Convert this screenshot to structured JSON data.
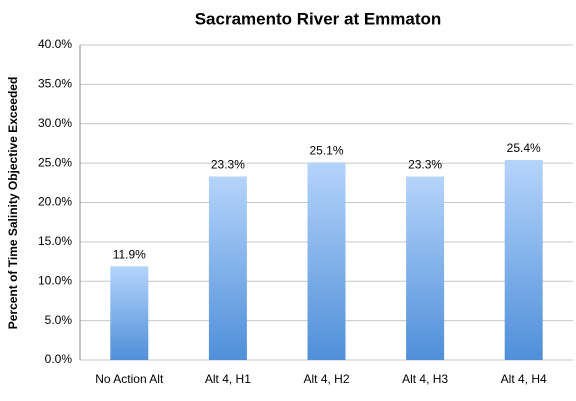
{
  "chart_data": {
    "type": "bar",
    "title": "Sacramento River at Emmaton",
    "y_label": "Percent of Time Salinity Objective Exceeded",
    "categories": [
      "No Action Alt",
      "Alt 4, H1",
      "Alt 4, H2",
      "Alt 4, H3",
      "Alt 4, H4"
    ],
    "values": [
      11.9,
      23.3,
      25.1,
      23.3,
      25.4
    ],
    "value_labels": [
      "11.9%",
      "23.3%",
      "25.1%",
      "23.3%",
      "25.4%"
    ],
    "color": "#4f8fd9",
    "color_top": "#b5d4fb",
    "ylim": [
      0,
      40
    ],
    "yticks": [
      {
        "value": 0,
        "label": "0.0%"
      },
      {
        "value": 5,
        "label": "5.0%"
      },
      {
        "value": 10,
        "label": "10.0%"
      },
      {
        "value": 15,
        "label": "15.0%"
      },
      {
        "value": 20,
        "label": "20.0%"
      },
      {
        "value": 25,
        "label": "25.0%"
      },
      {
        "value": 30,
        "label": "30.0%"
      },
      {
        "value": 35,
        "label": "35.0%"
      },
      {
        "value": 40,
        "label": "40.0%"
      }
    ],
    "grid": true
  }
}
